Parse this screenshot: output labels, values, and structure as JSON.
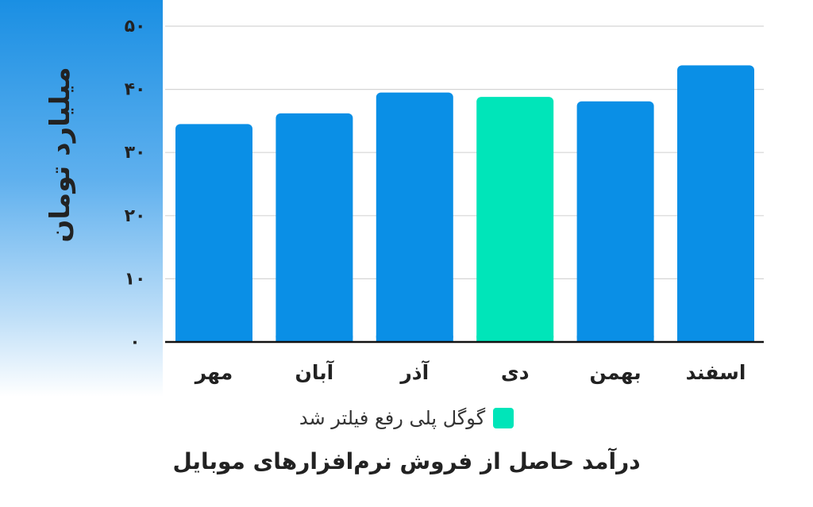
{
  "chart_data": {
    "type": "bar",
    "title": "درآمد حاصل از فروش نرم‌افزارهای موبایل",
    "ylabel": "میلیارد تومان",
    "categories": [
      "مهر",
      "آبان",
      "آذر",
      "دی",
      "بهمن",
      "اسفند"
    ],
    "values": [
      34.5,
      36.2,
      39.5,
      38.8,
      38.1,
      43.8
    ],
    "ylim": [
      0,
      50
    ],
    "yticks": [
      {
        "value": 0,
        "label": "۰"
      },
      {
        "value": 10,
        "label": "۱۰"
      },
      {
        "value": 20,
        "label": "۲۰"
      },
      {
        "value": 30,
        "label": "۳۰"
      },
      {
        "value": 40,
        "label": "۴۰"
      },
      {
        "value": 50,
        "label": "۵۰"
      }
    ],
    "grid": true,
    "colors": {
      "default": "#0a8fe6",
      "highlight": "#00e5b9"
    },
    "highlight_category": "دی",
    "legend": {
      "label": "گوگل پلی رفع فیلتر شد",
      "color": "#00e5b9",
      "placement": "bottom"
    }
  }
}
